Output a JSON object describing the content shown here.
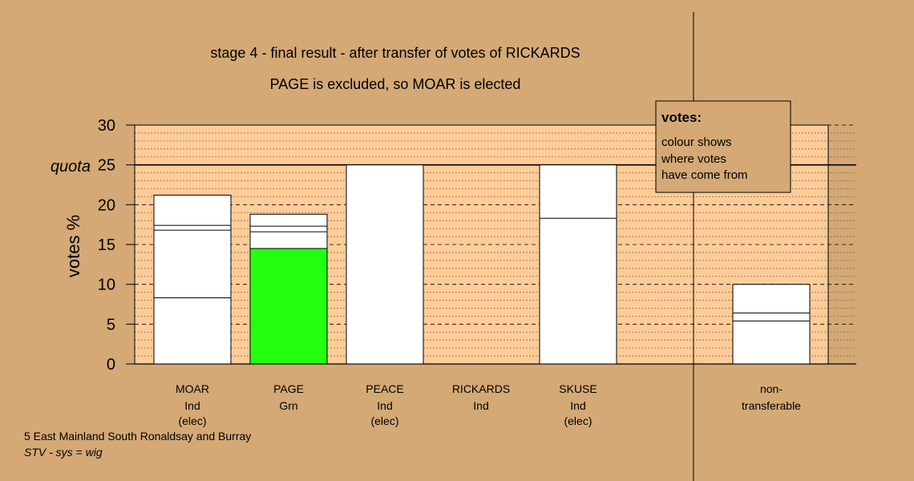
{
  "chart_data": {
    "type": "bar",
    "title": "stage 4 - final result - after transfer of votes of RICKARDS",
    "subtitle": "PAGE is excluded, so MOAR is elected",
    "ylabel": "votes %",
    "ylim": [
      0,
      30
    ],
    "yticks": [
      0,
      5,
      10,
      15,
      20,
      25,
      30
    ],
    "quota": 25,
    "quota_label": "quota",
    "candidates": [
      {
        "name": "MOAR",
        "party": "Ind",
        "status": "(elec)",
        "total": 21.2,
        "segments": [
          8.3,
          16.8,
          17.4,
          21.2
        ],
        "base_color": "#ffffff"
      },
      {
        "name": "PAGE",
        "party": "Grn",
        "status": "",
        "total": 18.8,
        "segments": [
          14.5,
          16.6,
          17.3,
          18.8
        ],
        "base_color": "#22ff11"
      },
      {
        "name": "PEACE",
        "party": "Ind",
        "status": "(elec)",
        "total": 25.0,
        "segments": [
          25.0
        ],
        "base_color": "#ffffff"
      },
      {
        "name": "RICKARDS",
        "party": "Ind",
        "status": "",
        "total": 0,
        "segments": [],
        "base_color": "#ffffff"
      },
      {
        "name": "SKUSE",
        "party": "Ind",
        "status": "(elec)",
        "total": 25.0,
        "segments": [
          18.3,
          25.0
        ],
        "base_color": "#ffffff"
      }
    ],
    "nontransferable": {
      "label_line1": "non-",
      "label_line2": "transferable",
      "total": 10.0,
      "segments": [
        5.4,
        6.4,
        10.0
      ]
    },
    "legend": {
      "title": "votes:",
      "lines": [
        "colour shows",
        "where votes",
        "have come from"
      ],
      "position": "top-right"
    },
    "grid": true,
    "plot_bg": "#ffcc99"
  },
  "footer": {
    "line1": "5 East Mainland South Ronaldsay and Burray",
    "line2": "STV - sys = wig"
  }
}
